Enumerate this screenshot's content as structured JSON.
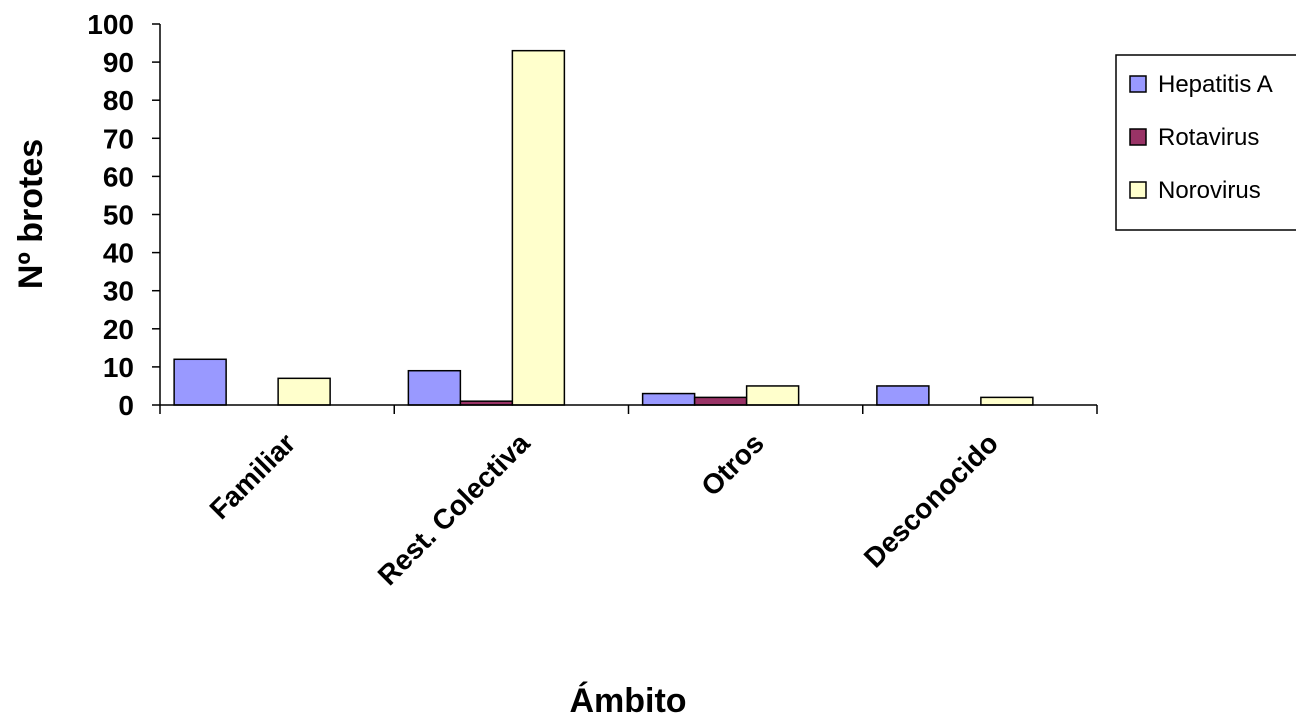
{
  "chart_data": {
    "type": "bar",
    "categories": [
      "Familiar",
      "Rest. Colectiva",
      "Otros",
      "Desconocido"
    ],
    "series": [
      {
        "name": "Hepatitis A",
        "values": [
          12,
          9,
          3,
          5
        ],
        "color": "#9999FF"
      },
      {
        "name": "Rotavirus",
        "values": [
          0,
          1,
          2,
          0
        ],
        "color": "#993366"
      },
      {
        "name": "Norovirus",
        "values": [
          7,
          93,
          5,
          2
        ],
        "color": "#FFFFCC"
      }
    ],
    "xlabel": "Ámbito",
    "ylabel": "Nº brotes",
    "ylim": [
      0,
      100
    ],
    "yticks": [
      "0",
      "10",
      "20",
      "30",
      "40",
      "50",
      "60",
      "70",
      "80",
      "90",
      "100"
    ],
    "grid": false,
    "legend_position": "right"
  }
}
